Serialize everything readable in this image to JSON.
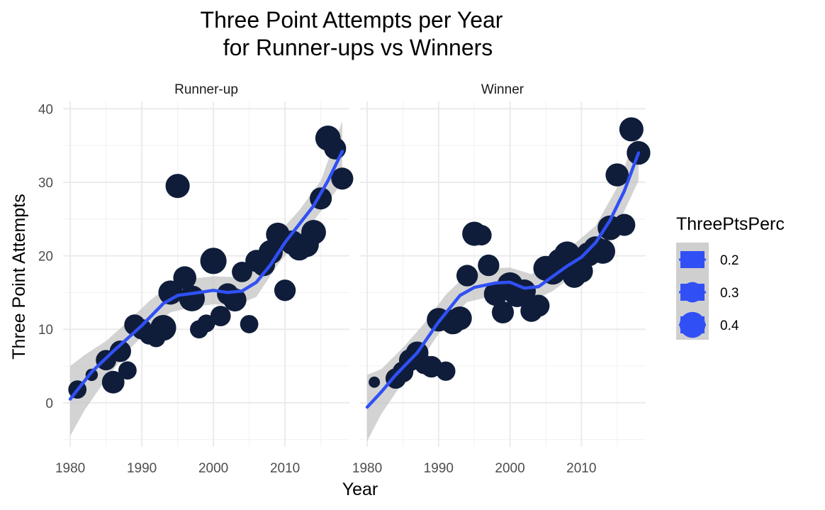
{
  "chart_data": {
    "type": "scatter",
    "title_line1": "Three Point Attempts per Year",
    "title_line2": "for Runner-ups vs Winners",
    "xlabel": "Year",
    "ylabel": "Three Point Attempts",
    "xlim": [
      1979,
      2019
    ],
    "ylim": [
      -6,
      41
    ],
    "x_ticks": [
      1980,
      1990,
      2000,
      2010
    ],
    "x_tick_labels": [
      "1980",
      "1990",
      "2000",
      "2010"
    ],
    "y_ticks": [
      0,
      10,
      20,
      30,
      40
    ],
    "y_tick_labels": [
      "0",
      "10",
      "20",
      "30",
      "40"
    ],
    "grid": true,
    "legend": {
      "title": "ThreePtsPerc",
      "placement": "right",
      "entries": [
        {
          "label": "0.2",
          "value": 0.2
        },
        {
          "label": "0.3",
          "value": 0.3
        },
        {
          "label": "0.4",
          "value": 0.4
        }
      ]
    },
    "colors": {
      "point": "#0f1d3a",
      "smooth": "#3050f5",
      "ribbon": "#c4c4c4"
    },
    "facets": [
      {
        "strip": "Runner-up",
        "points": [
          {
            "x": 1981,
            "y": 1.8,
            "s": 0.26
          },
          {
            "x": 1983,
            "y": 3.8,
            "s": 0.15
          },
          {
            "x": 1985,
            "y": 5.8,
            "s": 0.3
          },
          {
            "x": 1986,
            "y": 2.8,
            "s": 0.34
          },
          {
            "x": 1987,
            "y": 7.0,
            "s": 0.32
          },
          {
            "x": 1988,
            "y": 4.4,
            "s": 0.26
          },
          {
            "x": 1989,
            "y": 10.6,
            "s": 0.31
          },
          {
            "x": 1990,
            "y": 10.0,
            "s": 0.3
          },
          {
            "x": 1991,
            "y": 9.2,
            "s": 0.27
          },
          {
            "x": 1992,
            "y": 8.8,
            "s": 0.26
          },
          {
            "x": 1993,
            "y": 10.2,
            "s": 0.4
          },
          {
            "x": 1994,
            "y": 15.0,
            "s": 0.37
          },
          {
            "x": 1995,
            "y": 29.5,
            "s": 0.37
          },
          {
            "x": 1996,
            "y": 17.0,
            "s": 0.35
          },
          {
            "x": 1997,
            "y": 14.2,
            "s": 0.4
          },
          {
            "x": 1998,
            "y": 10.0,
            "s": 0.26
          },
          {
            "x": 1999,
            "y": 10.8,
            "s": 0.25
          },
          {
            "x": 2000,
            "y": 19.3,
            "s": 0.41
          },
          {
            "x": 2001,
            "y": 11.8,
            "s": 0.3
          },
          {
            "x": 2002,
            "y": 14.8,
            "s": 0.32
          },
          {
            "x": 2003,
            "y": 14.0,
            "s": 0.35
          },
          {
            "x": 2004,
            "y": 17.8,
            "s": 0.3
          },
          {
            "x": 2005,
            "y": 10.7,
            "s": 0.26
          },
          {
            "x": 2006,
            "y": 19.3,
            "s": 0.33
          },
          {
            "x": 2007,
            "y": 18.8,
            "s": 0.35
          },
          {
            "x": 2008,
            "y": 20.5,
            "s": 0.37
          },
          {
            "x": 2009,
            "y": 22.9,
            "s": 0.36
          },
          {
            "x": 2010,
            "y": 15.3,
            "s": 0.32
          },
          {
            "x": 2011,
            "y": 21.8,
            "s": 0.37
          },
          {
            "x": 2012,
            "y": 21.0,
            "s": 0.37
          },
          {
            "x": 2013,
            "y": 21.5,
            "s": 0.38
          },
          {
            "x": 2014,
            "y": 23.2,
            "s": 0.38
          },
          {
            "x": 2015,
            "y": 27.8,
            "s": 0.33
          },
          {
            "x": 2016,
            "y": 36.0,
            "s": 0.39
          },
          {
            "x": 2017,
            "y": 34.6,
            "s": 0.33
          },
          {
            "x": 2018,
            "y": 30.5,
            "s": 0.33
          }
        ],
        "smooth": [
          [
            1980,
            0.5
          ],
          [
            1983,
            4.2
          ],
          [
            1986,
            7.0
          ],
          [
            1990,
            10.5
          ],
          [
            1993,
            13.5
          ],
          [
            1995,
            14.6
          ],
          [
            1998,
            15.0
          ],
          [
            2000,
            15.3
          ],
          [
            2002,
            15.0
          ],
          [
            2004,
            15.2
          ],
          [
            2006,
            16.4
          ],
          [
            2008,
            18.8
          ],
          [
            2010,
            21.8
          ],
          [
            2012,
            24.3
          ],
          [
            2014,
            26.8
          ],
          [
            2016,
            30.2
          ],
          [
            2018,
            34.2
          ]
        ],
        "band": [
          [
            1980,
            -4.5,
            5.0
          ],
          [
            1982,
            -1.0,
            6.5
          ],
          [
            1985,
            3.2,
            8.4
          ],
          [
            1988,
            7.0,
            11.0
          ],
          [
            1991,
            10.0,
            13.8
          ],
          [
            1994,
            12.3,
            16.1
          ],
          [
            1997,
            13.0,
            16.9
          ],
          [
            2000,
            13.4,
            17.2
          ],
          [
            2003,
            13.2,
            17.1
          ],
          [
            2006,
            14.4,
            18.5
          ],
          [
            2009,
            18.8,
            23.0
          ],
          [
            2012,
            22.3,
            26.2
          ],
          [
            2015,
            26.0,
            30.2
          ],
          [
            2018,
            30.0,
            38.3
          ]
        ]
      },
      {
        "strip": "Winner",
        "points": [
          {
            "x": 1981,
            "y": 2.8,
            "s": 0.13
          },
          {
            "x": 1984,
            "y": 3.3,
            "s": 0.3
          },
          {
            "x": 1985,
            "y": 4.2,
            "s": 0.31
          },
          {
            "x": 1986,
            "y": 5.8,
            "s": 0.33
          },
          {
            "x": 1987,
            "y": 6.8,
            "s": 0.34
          },
          {
            "x": 1988,
            "y": 5.2,
            "s": 0.28
          },
          {
            "x": 1989,
            "y": 4.9,
            "s": 0.32
          },
          {
            "x": 1990,
            "y": 11.3,
            "s": 0.36
          },
          {
            "x": 1991,
            "y": 4.3,
            "s": 0.28
          },
          {
            "x": 1992,
            "y": 11.0,
            "s": 0.38
          },
          {
            "x": 1993,
            "y": 11.5,
            "s": 0.36
          },
          {
            "x": 1994,
            "y": 17.3,
            "s": 0.32
          },
          {
            "x": 1995,
            "y": 23.0,
            "s": 0.37
          },
          {
            "x": 1996,
            "y": 22.8,
            "s": 0.3
          },
          {
            "x": 1997,
            "y": 18.7,
            "s": 0.32
          },
          {
            "x": 1998,
            "y": 14.8,
            "s": 0.36
          },
          {
            "x": 1999,
            "y": 12.3,
            "s": 0.33
          },
          {
            "x": 2000,
            "y": 16.0,
            "s": 0.4
          },
          {
            "x": 2001,
            "y": 14.7,
            "s": 0.38
          },
          {
            "x": 2002,
            "y": 15.2,
            "s": 0.35
          },
          {
            "x": 2003,
            "y": 12.5,
            "s": 0.33
          },
          {
            "x": 2004,
            "y": 13.2,
            "s": 0.33
          },
          {
            "x": 2005,
            "y": 18.3,
            "s": 0.38
          },
          {
            "x": 2006,
            "y": 17.8,
            "s": 0.39
          },
          {
            "x": 2007,
            "y": 19.3,
            "s": 0.38
          },
          {
            "x": 2008,
            "y": 20.2,
            "s": 0.4
          },
          {
            "x": 2009,
            "y": 17.2,
            "s": 0.35
          },
          {
            "x": 2010,
            "y": 17.9,
            "s": 0.35
          },
          {
            "x": 2011,
            "y": 20.2,
            "s": 0.37
          },
          {
            "x": 2012,
            "y": 21.0,
            "s": 0.37
          },
          {
            "x": 2013,
            "y": 20.6,
            "s": 0.38
          },
          {
            "x": 2014,
            "y": 23.8,
            "s": 0.38
          },
          {
            "x": 2015,
            "y": 31.0,
            "s": 0.35
          },
          {
            "x": 2016,
            "y": 24.2,
            "s": 0.33
          },
          {
            "x": 2017,
            "y": 37.2,
            "s": 0.37
          },
          {
            "x": 2018,
            "y": 34.0,
            "s": 0.36
          }
        ],
        "smooth": [
          [
            1980,
            -0.6
          ],
          [
            1982,
            1.5
          ],
          [
            1984,
            3.8
          ],
          [
            1987,
            6.8
          ],
          [
            1990,
            11.0
          ],
          [
            1993,
            14.6
          ],
          [
            1995,
            15.7
          ],
          [
            1998,
            16.3
          ],
          [
            2000,
            16.4
          ],
          [
            2002,
            15.6
          ],
          [
            2004,
            15.8
          ],
          [
            2006,
            17.2
          ],
          [
            2008,
            18.6
          ],
          [
            2010,
            19.8
          ],
          [
            2012,
            21.8
          ],
          [
            2014,
            24.8
          ],
          [
            2016,
            28.8
          ],
          [
            2018,
            34.0
          ]
        ],
        "band": [
          [
            1980,
            -5.2,
            3.8
          ],
          [
            1982,
            -1.5,
            4.6
          ],
          [
            1985,
            2.8,
            7.5
          ],
          [
            1988,
            6.5,
            10.8
          ],
          [
            1991,
            10.8,
            14.7
          ],
          [
            1994,
            13.7,
            17.5
          ],
          [
            1997,
            14.4,
            18.3
          ],
          [
            2000,
            14.6,
            18.4
          ],
          [
            2003,
            13.8,
            17.5
          ],
          [
            2006,
            15.2,
            19.2
          ],
          [
            2009,
            17.4,
            21.6
          ],
          [
            2012,
            19.8,
            24.1
          ],
          [
            2015,
            24.0,
            29.3
          ],
          [
            2018,
            30.2,
            37.4
          ]
        ]
      }
    ]
  }
}
